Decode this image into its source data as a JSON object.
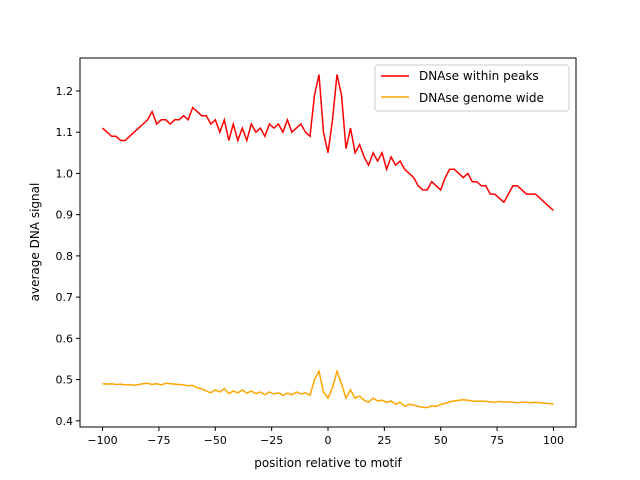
{
  "chart_data": {
    "type": "line",
    "title": "",
    "xlabel": "position relative to motif",
    "ylabel": "average DNA signal",
    "xlim": [
      -110,
      110
    ],
    "ylim": [
      0.385,
      1.28
    ],
    "xticks": [
      -100,
      -75,
      -50,
      -25,
      0,
      25,
      50,
      75,
      100
    ],
    "yticks": [
      0.4,
      0.5,
      0.6,
      0.7,
      0.8,
      0.9,
      1.0,
      1.1,
      1.2
    ],
    "ytick_labels": [
      "0.4",
      "0.5",
      "0.6",
      "0.7",
      "0.8",
      "0.9",
      "1.0",
      "1.1",
      "1.2"
    ],
    "grid": false,
    "legend_position": "top-right",
    "x": [
      -100,
      -98,
      -96,
      -94,
      -92,
      -90,
      -88,
      -86,
      -84,
      -82,
      -80,
      -78,
      -76,
      -74,
      -72,
      -70,
      -68,
      -66,
      -64,
      -62,
      -60,
      -58,
      -56,
      -54,
      -52,
      -50,
      -48,
      -46,
      -44,
      -42,
      -40,
      -38,
      -36,
      -34,
      -32,
      -30,
      -28,
      -26,
      -24,
      -22,
      -20,
      -18,
      -16,
      -14,
      -12,
      -10,
      -8,
      -6,
      -4,
      -2,
      0,
      2,
      4,
      6,
      8,
      10,
      12,
      14,
      16,
      18,
      20,
      22,
      24,
      26,
      28,
      30,
      32,
      34,
      36,
      38,
      40,
      42,
      44,
      46,
      48,
      50,
      52,
      54,
      56,
      58,
      60,
      62,
      64,
      66,
      68,
      70,
      72,
      74,
      76,
      78,
      80,
      82,
      84,
      86,
      88,
      90,
      92,
      94,
      96,
      98,
      100
    ],
    "series": [
      {
        "name": "DNAse within peaks",
        "color": "#ff0000",
        "values": [
          1.11,
          1.1,
          1.09,
          1.09,
          1.08,
          1.08,
          1.09,
          1.1,
          1.11,
          1.12,
          1.13,
          1.15,
          1.12,
          1.13,
          1.13,
          1.12,
          1.13,
          1.13,
          1.14,
          1.13,
          1.16,
          1.15,
          1.14,
          1.14,
          1.12,
          1.13,
          1.1,
          1.13,
          1.08,
          1.12,
          1.08,
          1.11,
          1.08,
          1.12,
          1.1,
          1.11,
          1.09,
          1.12,
          1.11,
          1.12,
          1.1,
          1.13,
          1.1,
          1.11,
          1.12,
          1.1,
          1.09,
          1.19,
          1.24,
          1.1,
          1.05,
          1.13,
          1.24,
          1.19,
          1.06,
          1.11,
          1.05,
          1.07,
          1.04,
          1.02,
          1.05,
          1.03,
          1.05,
          1.01,
          1.04,
          1.02,
          1.03,
          1.01,
          1.0,
          0.99,
          0.97,
          0.96,
          0.96,
          0.98,
          0.97,
          0.96,
          0.99,
          1.01,
          1.01,
          1.0,
          0.99,
          1.0,
          0.98,
          0.98,
          0.97,
          0.97,
          0.95,
          0.95,
          0.94,
          0.93,
          0.95,
          0.97,
          0.97,
          0.96,
          0.95,
          0.95,
          0.95,
          0.94,
          0.93,
          0.92,
          0.91
        ]
      },
      {
        "name": "DNAse genome wide",
        "color": "#ffa500",
        "values": [
          0.49,
          0.489,
          0.49,
          0.488,
          0.489,
          0.487,
          0.488,
          0.486,
          0.488,
          0.49,
          0.491,
          0.488,
          0.49,
          0.487,
          0.491,
          0.49,
          0.489,
          0.488,
          0.487,
          0.485,
          0.486,
          0.48,
          0.478,
          0.472,
          0.468,
          0.475,
          0.47,
          0.478,
          0.466,
          0.472,
          0.468,
          0.475,
          0.467,
          0.472,
          0.466,
          0.47,
          0.463,
          0.47,
          0.465,
          0.468,
          0.462,
          0.467,
          0.463,
          0.47,
          0.465,
          0.468,
          0.462,
          0.5,
          0.52,
          0.47,
          0.455,
          0.48,
          0.52,
          0.49,
          0.455,
          0.475,
          0.455,
          0.46,
          0.45,
          0.445,
          0.455,
          0.448,
          0.45,
          0.445,
          0.448,
          0.44,
          0.445,
          0.435,
          0.44,
          0.438,
          0.435,
          0.433,
          0.432,
          0.436,
          0.435,
          0.44,
          0.442,
          0.446,
          0.448,
          0.45,
          0.451,
          0.45,
          0.448,
          0.447,
          0.448,
          0.447,
          0.446,
          0.445,
          0.447,
          0.445,
          0.446,
          0.445,
          0.444,
          0.445,
          0.445,
          0.444,
          0.445,
          0.444,
          0.443,
          0.442,
          0.44
        ]
      }
    ]
  }
}
